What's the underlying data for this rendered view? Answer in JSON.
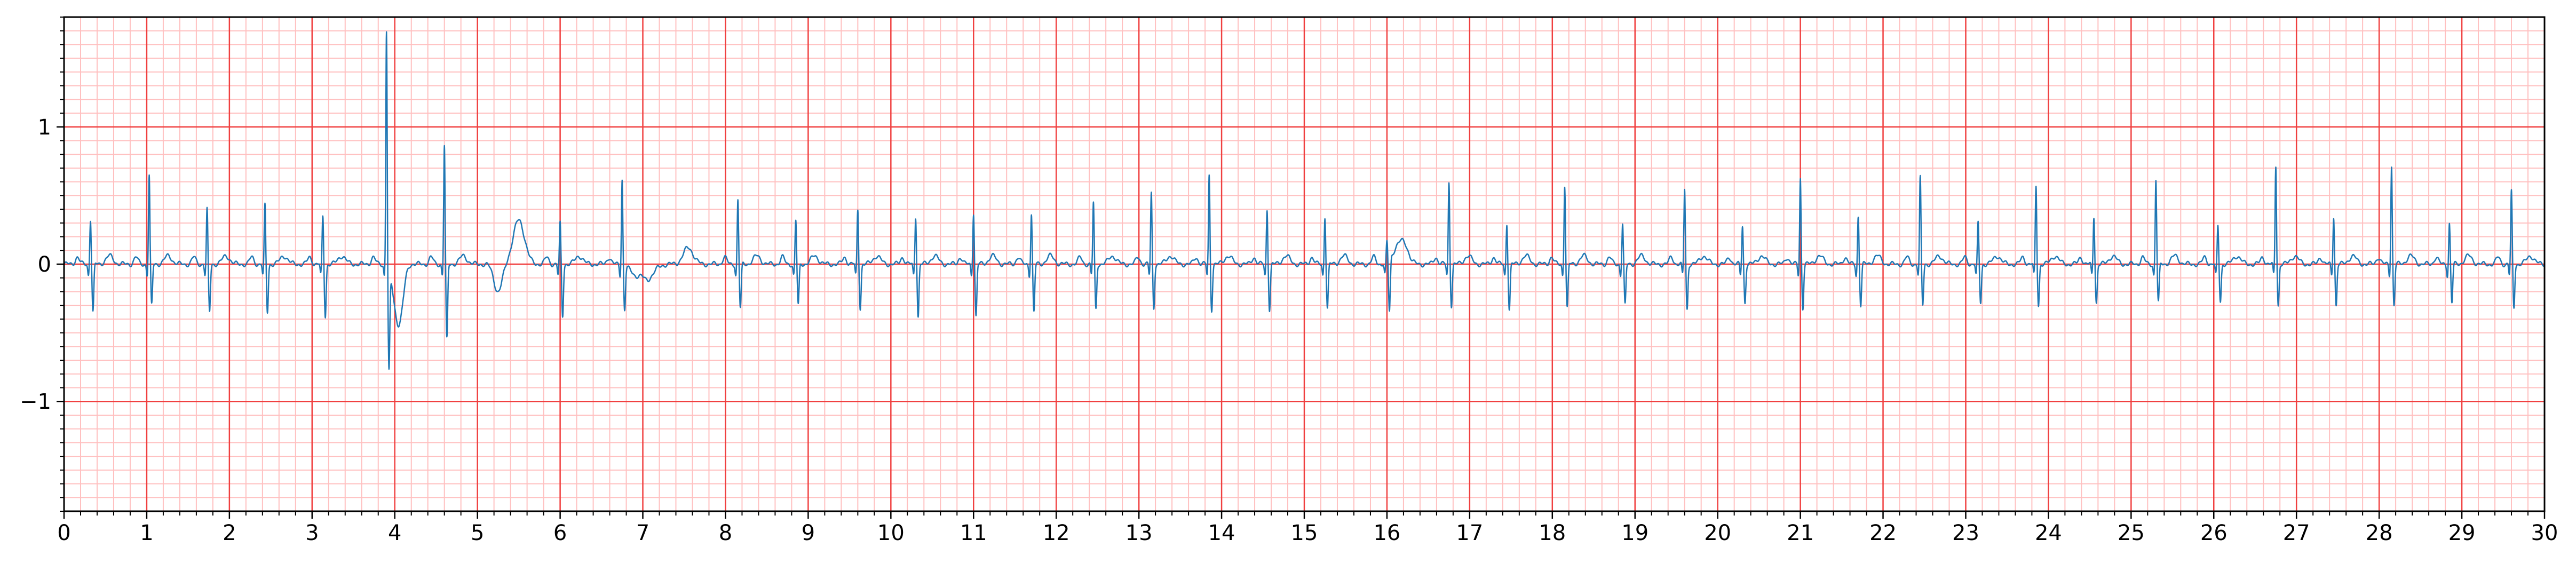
{
  "chart_data": {
    "type": "line",
    "title": "",
    "xlabel": "",
    "ylabel": "",
    "xlim": [
      0,
      30
    ],
    "ylim": [
      -1.8,
      1.8
    ],
    "x_major_ticks": [
      0,
      1,
      2,
      3,
      4,
      5,
      6,
      7,
      8,
      9,
      10,
      11,
      12,
      13,
      14,
      15,
      16,
      17,
      18,
      19,
      20,
      21,
      22,
      23,
      24,
      25,
      26,
      27,
      28,
      29,
      30
    ],
    "x_tick_labels": [
      "0",
      "1",
      "2",
      "3",
      "4",
      "5",
      "6",
      "7",
      "8",
      "9",
      "10",
      "11",
      "12",
      "13",
      "14",
      "15",
      "16",
      "17",
      "18",
      "19",
      "20",
      "21",
      "22",
      "23",
      "24",
      "25",
      "26",
      "27",
      "28",
      "29",
      "30"
    ],
    "x_minor_step": 0.2,
    "y_major_ticks": [
      -1,
      0,
      1
    ],
    "y_tick_labels": [
      "−1",
      "0",
      "1"
    ],
    "y_minor_step": 0.1,
    "grid": true,
    "series": [
      {
        "color": "#1f77b4",
        "beats": [
          {
            "t": 0.32,
            "r": 0.33,
            "s": -0.35
          },
          {
            "t": 1.03,
            "r": 0.65,
            "s": -0.3
          },
          {
            "t": 1.73,
            "r": 0.4,
            "s": -0.35
          },
          {
            "t": 2.43,
            "r": 0.43,
            "s": -0.35
          },
          {
            "t": 3.13,
            "r": 0.35,
            "s": -0.38
          },
          {
            "t": 3.9,
            "r": 1.73,
            "s": -0.72
          },
          {
            "t": 4.6,
            "r": 0.87,
            "s": -0.55
          },
          {
            "t": 6.0,
            "r": 0.3,
            "s": -0.38
          },
          {
            "t": 6.75,
            "r": 0.63,
            "s": -0.32
          },
          {
            "t": 8.15,
            "r": 0.47,
            "s": -0.32
          },
          {
            "t": 8.85,
            "r": 0.32,
            "s": -0.3
          },
          {
            "t": 9.6,
            "r": 0.4,
            "s": -0.32
          },
          {
            "t": 10.3,
            "r": 0.35,
            "s": -0.38
          },
          {
            "t": 11.0,
            "r": 0.38,
            "s": -0.38
          },
          {
            "t": 11.7,
            "r": 0.37,
            "s": -0.35
          },
          {
            "t": 12.45,
            "r": 0.45,
            "s": -0.33
          },
          {
            "t": 13.15,
            "r": 0.52,
            "s": -0.32
          },
          {
            "t": 13.85,
            "r": 0.65,
            "s": -0.33
          },
          {
            "t": 14.55,
            "r": 0.4,
            "s": -0.33
          },
          {
            "t": 15.25,
            "r": 0.35,
            "s": -0.32
          },
          {
            "t": 16.0,
            "r": 0.15,
            "s": -0.38
          },
          {
            "t": 16.75,
            "r": 0.6,
            "s": -0.3
          },
          {
            "t": 17.45,
            "r": 0.3,
            "s": -0.33
          },
          {
            "t": 18.15,
            "r": 0.58,
            "s": -0.32
          },
          {
            "t": 18.85,
            "r": 0.3,
            "s": -0.3
          },
          {
            "t": 19.6,
            "r": 0.55,
            "s": -0.33
          },
          {
            "t": 20.3,
            "r": 0.28,
            "s": -0.28
          },
          {
            "t": 21.0,
            "r": 0.63,
            "s": -0.32
          },
          {
            "t": 21.7,
            "r": 0.35,
            "s": -0.3
          },
          {
            "t": 22.45,
            "r": 0.63,
            "s": -0.3
          },
          {
            "t": 23.15,
            "r": 0.3,
            "s": -0.28
          },
          {
            "t": 23.85,
            "r": 0.57,
            "s": -0.3
          },
          {
            "t": 24.55,
            "r": 0.35,
            "s": -0.28
          },
          {
            "t": 25.3,
            "r": 0.62,
            "s": -0.28
          },
          {
            "t": 26.05,
            "r": 0.28,
            "s": -0.27
          },
          {
            "t": 26.75,
            "r": 0.72,
            "s": -0.3
          },
          {
            "t": 27.45,
            "r": 0.35,
            "s": -0.3
          },
          {
            "t": 28.15,
            "r": 0.72,
            "s": -0.3
          },
          {
            "t": 28.85,
            "r": 0.3,
            "s": -0.28
          },
          {
            "t": 29.6,
            "r": 0.53,
            "s": -0.32
          }
        ],
        "slow_waves": [
          {
            "t": 4.05,
            "amp": -0.45,
            "w": 0.06
          },
          {
            "t": 5.5,
            "amp": 0.32,
            "w": 0.07
          },
          {
            "t": 5.25,
            "amp": -0.2,
            "w": 0.05
          },
          {
            "t": 7.0,
            "amp": -0.15,
            "w": 0.1
          },
          {
            "t": 16.15,
            "amp": 0.15,
            "w": 0.07
          },
          {
            "t": 7.55,
            "amp": 0.12,
            "w": 0.06
          }
        ]
      }
    ]
  }
}
